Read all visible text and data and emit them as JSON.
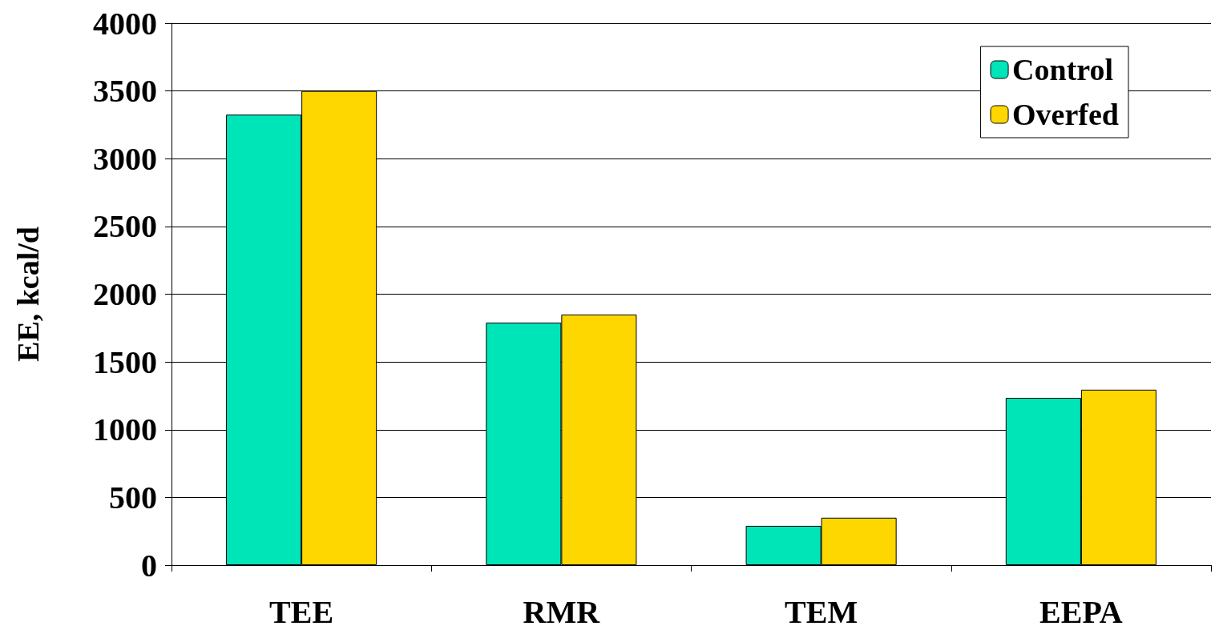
{
  "chart_data": {
    "type": "bar",
    "ylabel": "EE, kcal/d",
    "categories": [
      "TEE",
      "RMR",
      "TEM",
      "EEPA"
    ],
    "series": [
      {
        "name": "Control",
        "color": "#00e5b8",
        "values": [
          3325,
          1790,
          290,
          1235
        ]
      },
      {
        "name": "Overfed",
        "color": "#ffd700",
        "values": [
          3500,
          1850,
          350,
          1295
        ]
      }
    ],
    "ylim": [
      0,
      4000
    ],
    "yticks": [
      0,
      500,
      1000,
      1500,
      2000,
      2500,
      3000,
      3500,
      4000
    ],
    "grid": "y",
    "legend": "top right"
  }
}
